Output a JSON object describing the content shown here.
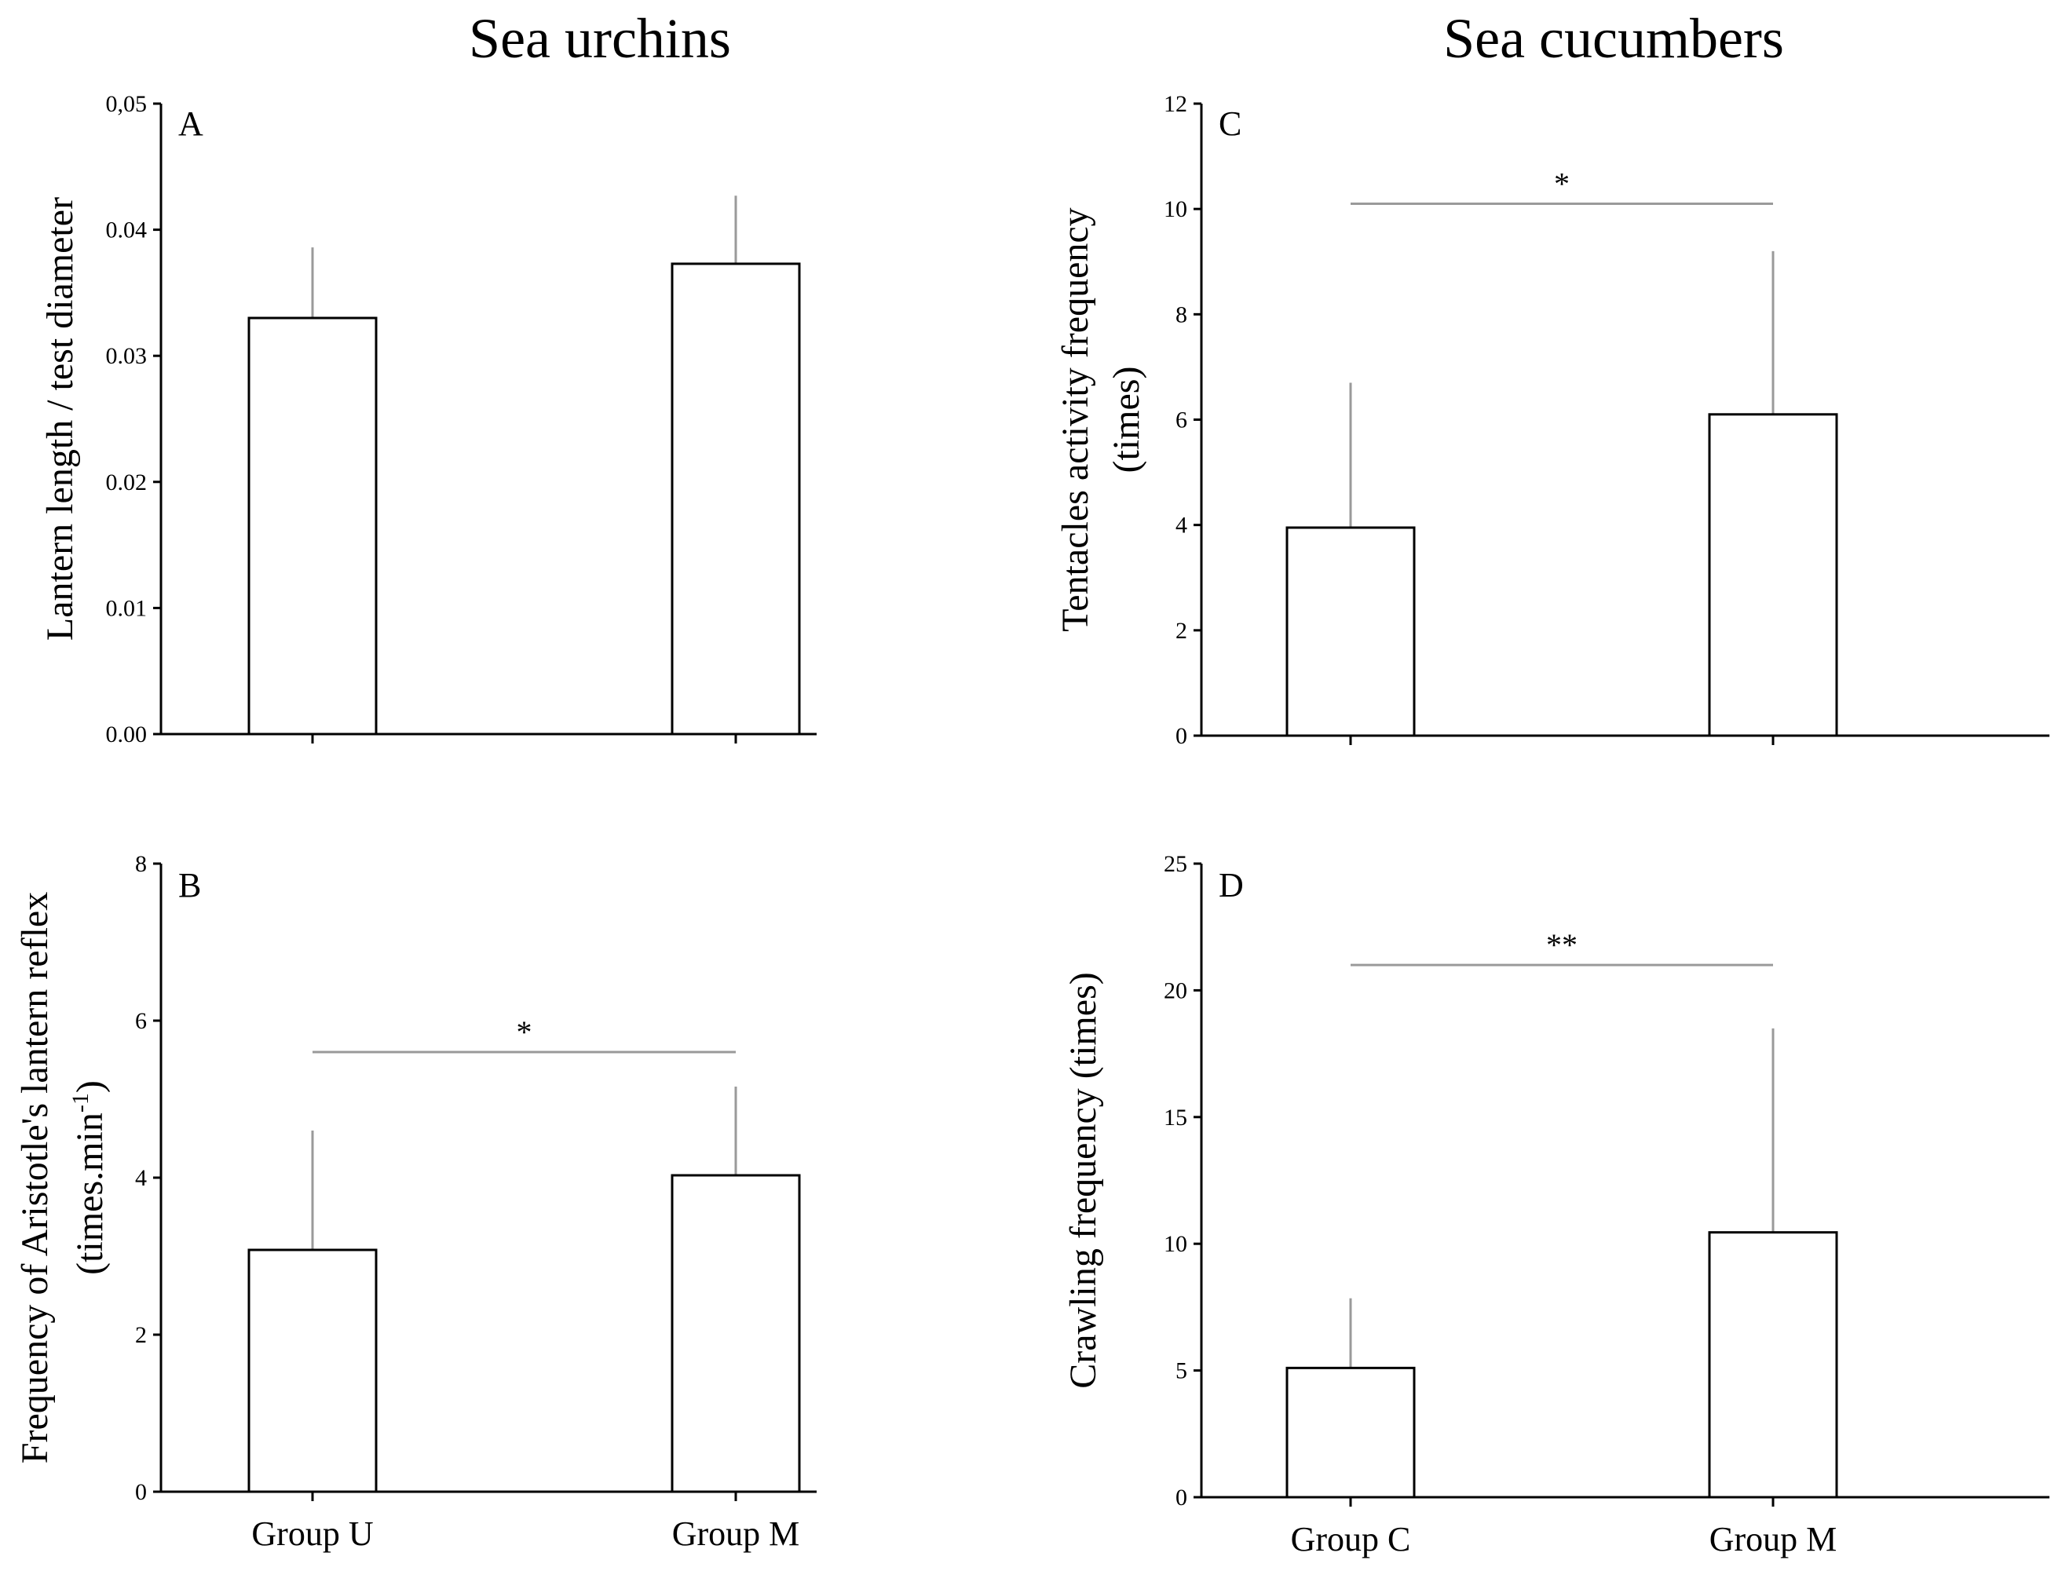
{
  "headers": {
    "left": "Sea urchins",
    "right": "Sea cucumbers"
  },
  "colors": {
    "axis": "#000000",
    "bar_fill": "#ffffff",
    "bar_stroke": "#000000",
    "sig_line": "#9a9a9a"
  },
  "chart_data": [
    {
      "panel": "A",
      "type": "bar",
      "categories": [
        "Group U",
        "Group M"
      ],
      "values": [
        0.033,
        0.0373
      ],
      "errors": [
        0.0056,
        0.0054
      ],
      "ylabel": "Lantern length / test diameter",
      "ylim": [
        0,
        0.05
      ],
      "yticks": [
        "0.00",
        "0.01",
        "0.02",
        "0.03",
        "0.04",
        "0,05"
      ],
      "show_category_labels": false,
      "significance": null
    },
    {
      "panel": "B",
      "type": "bar",
      "categories": [
        "Group U",
        "Group M"
      ],
      "values": [
        3.08,
        4.03
      ],
      "errors": [
        1.52,
        1.13
      ],
      "ylabel": "Frequency of Aristotle's lantern reflex",
      "ylabel2": "(times.min",
      "ylabel2_sup": "-1",
      "ylabel2_end": ")",
      "ylim": [
        0,
        8
      ],
      "yticks": [
        "0",
        "2",
        "4",
        "6",
        "8"
      ],
      "show_category_labels": true,
      "significance": {
        "label": "*",
        "y": 5.6
      }
    },
    {
      "panel": "C",
      "type": "bar",
      "categories": [
        "Group C",
        "Group M"
      ],
      "values": [
        3.95,
        6.1
      ],
      "errors": [
        2.75,
        3.1
      ],
      "ylabel": "Tentacles activity frequency",
      "ylabel2": "(times)",
      "ylim": [
        0,
        12
      ],
      "yticks": [
        "0",
        "2",
        "4",
        "6",
        "8",
        "10",
        "12"
      ],
      "show_category_labels": false,
      "significance": {
        "label": "*",
        "y": 10.1
      }
    },
    {
      "panel": "D",
      "type": "bar",
      "categories": [
        "Group C",
        "Group M"
      ],
      "values": [
        5.1,
        10.45
      ],
      "errors": [
        2.75,
        8.05
      ],
      "ylabel": "Crawling frequency (times)",
      "ylim": [
        0,
        25
      ],
      "yticks": [
        "0",
        "5",
        "10",
        "15",
        "20",
        "25"
      ],
      "show_category_labels": true,
      "significance": {
        "label": "**",
        "y": 21
      }
    }
  ]
}
